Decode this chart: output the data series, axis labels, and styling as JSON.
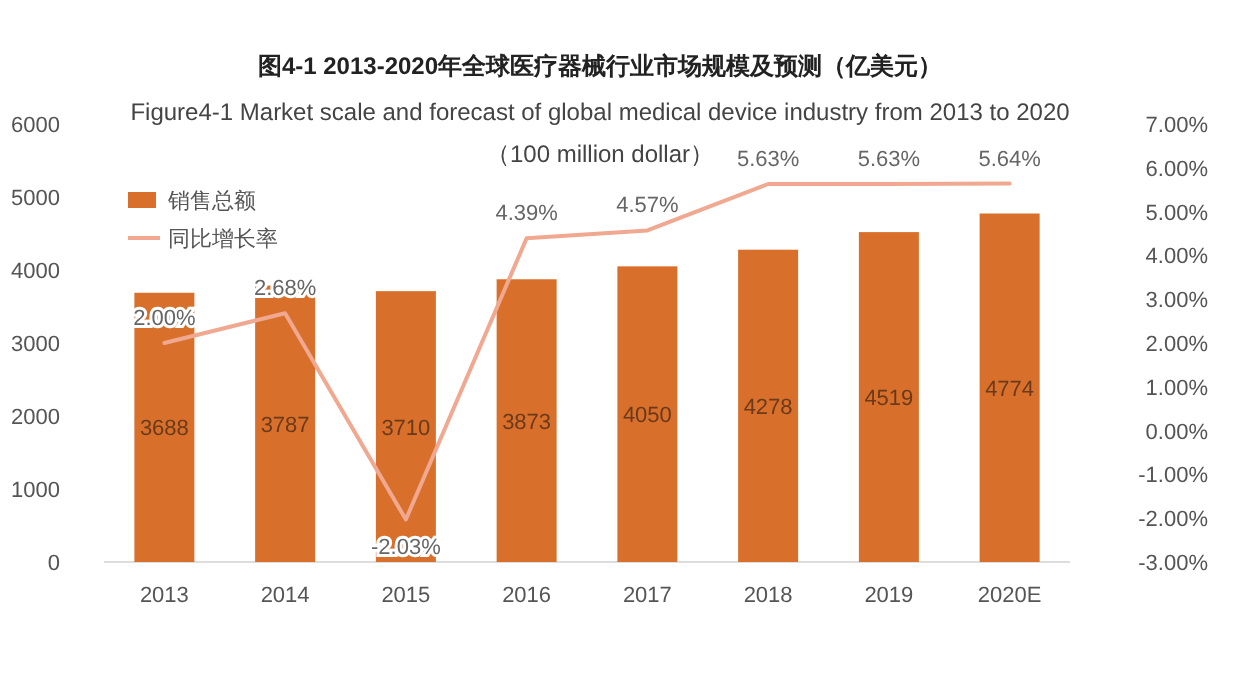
{
  "chart_data": {
    "type": "bar",
    "title": "图4-1 2013-2020年全球医疗器械行业市场规模及预测（亿美元）",
    "subtitle": "Figure4-1 Market scale and forecast of global medical device industry from 2013 to 2020\n（100 million dollar）",
    "categories": [
      "2013",
      "2014",
      "2015",
      "2016",
      "2017",
      "2018",
      "2019",
      "2020E"
    ],
    "series": [
      {
        "name": "销售总额",
        "color": "#d86f2a",
        "values": [
          3688,
          3787,
          3710,
          3873,
          4050,
          4278,
          4519,
          4774
        ],
        "value_labels": [
          "3688",
          "3787",
          "3710",
          "3873",
          "4050",
          "4278",
          "4519",
          "4774"
        ]
      },
      {
        "name": "同比增长率",
        "type": "line",
        "axis": "y2",
        "color": "#f0a890",
        "values": [
          2.0,
          2.68,
          -2.03,
          4.39,
          4.57,
          5.63,
          5.63,
          5.64
        ],
        "value_labels": [
          "2.00%",
          "2.68%",
          "-2.03%",
          "4.39%",
          "4.57%",
          "5.63%",
          "5.63%",
          "5.64%"
        ]
      }
    ],
    "ylim": [
      0,
      6000
    ],
    "yticks": [
      0,
      1000,
      2000,
      3000,
      4000,
      5000,
      6000
    ],
    "y2lim": [
      -3,
      7
    ],
    "y2ticks": [
      {
        "value": -3,
        "label": "-3.00%"
      },
      {
        "value": -2,
        "label": "-2.00%"
      },
      {
        "value": -1,
        "label": "-1.00%"
      },
      {
        "value": 0,
        "label": "0.00%"
      },
      {
        "value": 1,
        "label": "1.00%"
      },
      {
        "value": 2,
        "label": "2.00%"
      },
      {
        "value": 3,
        "label": "3.00%"
      },
      {
        "value": 4,
        "label": "4.00%"
      },
      {
        "value": 5,
        "label": "5.00%"
      },
      {
        "value": 6,
        "label": "6.00%"
      },
      {
        "value": 7,
        "label": "7.00%"
      }
    ],
    "legend": "top left",
    "grid": false,
    "marker": "none"
  }
}
